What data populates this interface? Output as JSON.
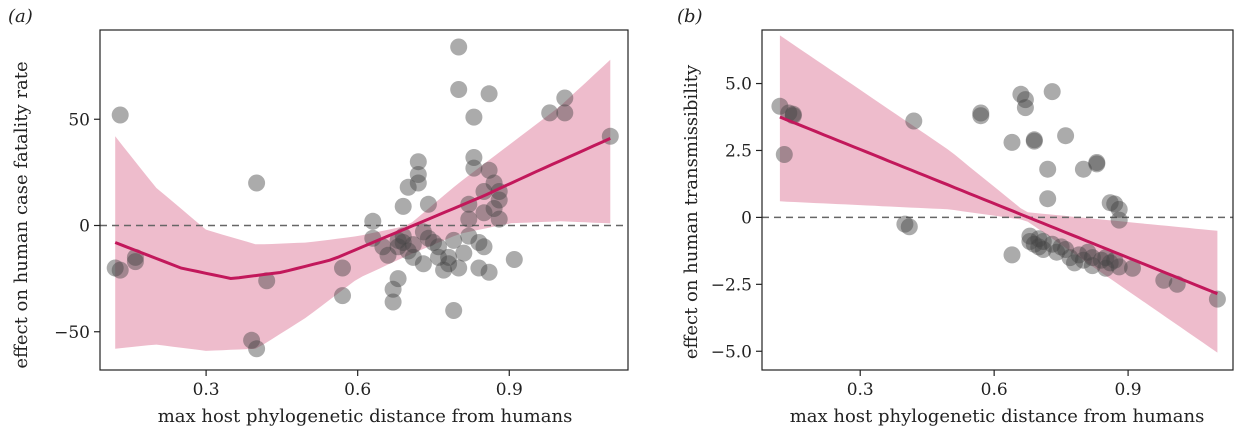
{
  "chart_data": [
    {
      "type": "scatter",
      "panel_label": "(a)",
      "xlabel": "max host phylogenetic distance from humans",
      "ylabel": "effect on human case fatality rate",
      "xlim": [
        0.09,
        1.135
      ],
      "ylim": [
        -68,
        92
      ],
      "xticks": [
        0.3,
        0.6,
        0.9
      ],
      "xtick_labels": [
        "0.3",
        "0.6",
        "0.9"
      ],
      "yticks": [
        50,
        0,
        -50
      ],
      "ytick_labels": [
        "50",
        "0",
        "−50"
      ],
      "reference_line_y": 0,
      "points": [
        [
          0.12,
          -20
        ],
        [
          0.13,
          -21
        ],
        [
          0.13,
          52
        ],
        [
          0.16,
          -15
        ],
        [
          0.16,
          -17
        ],
        [
          0.39,
          -54
        ],
        [
          0.4,
          -58
        ],
        [
          0.4,
          20
        ],
        [
          0.42,
          -26
        ],
        [
          0.57,
          -20
        ],
        [
          0.57,
          -33
        ],
        [
          0.63,
          2
        ],
        [
          0.63,
          -6
        ],
        [
          0.65,
          -10
        ],
        [
          0.66,
          -14
        ],
        [
          0.67,
          -30
        ],
        [
          0.67,
          -36
        ],
        [
          0.68,
          -25
        ],
        [
          0.68,
          -7
        ],
        [
          0.68,
          -10
        ],
        [
          0.69,
          9
        ],
        [
          0.69,
          -5
        ],
        [
          0.69,
          -8
        ],
        [
          0.7,
          18
        ],
        [
          0.7,
          -12
        ],
        [
          0.71,
          -9
        ],
        [
          0.71,
          -15
        ],
        [
          0.72,
          30
        ],
        [
          0.72,
          24
        ],
        [
          0.72,
          20
        ],
        [
          0.73,
          -3
        ],
        [
          0.73,
          -18
        ],
        [
          0.74,
          10
        ],
        [
          0.74,
          -6
        ],
        [
          0.75,
          -8
        ],
        [
          0.76,
          -10
        ],
        [
          0.76,
          -15
        ],
        [
          0.77,
          -21
        ],
        [
          0.78,
          -15
        ],
        [
          0.78,
          -18
        ],
        [
          0.79,
          -40
        ],
        [
          0.79,
          -7
        ],
        [
          0.8,
          84
        ],
        [
          0.8,
          64
        ],
        [
          0.8,
          -20
        ],
        [
          0.81,
          -13
        ],
        [
          0.82,
          -5
        ],
        [
          0.82,
          3
        ],
        [
          0.82,
          10
        ],
        [
          0.83,
          51
        ],
        [
          0.83,
          32
        ],
        [
          0.83,
          27
        ],
        [
          0.84,
          -8
        ],
        [
          0.84,
          -20
        ],
        [
          0.85,
          16
        ],
        [
          0.85,
          6
        ],
        [
          0.85,
          -10
        ],
        [
          0.86,
          62
        ],
        [
          0.86,
          26
        ],
        [
          0.86,
          -22
        ],
        [
          0.87,
          8
        ],
        [
          0.87,
          20
        ],
        [
          0.88,
          3
        ],
        [
          0.88,
          12
        ],
        [
          0.88,
          16
        ],
        [
          0.91,
          -16
        ],
        [
          0.98,
          53
        ],
        [
          1.01,
          53
        ],
        [
          1.01,
          60
        ],
        [
          1.1,
          42
        ]
      ],
      "fit_line": [
        [
          0.12,
          -8
        ],
        [
          0.25,
          -20
        ],
        [
          0.35,
          -25
        ],
        [
          0.45,
          -22
        ],
        [
          0.55,
          -16
        ],
        [
          0.65,
          -6
        ],
        [
          0.75,
          4
        ],
        [
          0.85,
          14
        ],
        [
          0.95,
          25
        ],
        [
          1.1,
          41
        ]
      ],
      "ci_upper": [
        [
          0.12,
          42
        ],
        [
          0.2,
          18
        ],
        [
          0.3,
          -2
        ],
        [
          0.4,
          -9
        ],
        [
          0.5,
          -8
        ],
        [
          0.6,
          -5
        ],
        [
          0.7,
          0
        ],
        [
          0.8,
          20
        ],
        [
          0.9,
          38
        ],
        [
          1.0,
          56
        ],
        [
          1.1,
          78
        ]
      ],
      "ci_lower": [
        [
          0.12,
          -58
        ],
        [
          0.2,
          -56
        ],
        [
          0.3,
          -59
        ],
        [
          0.4,
          -58
        ],
        [
          0.5,
          -43
        ],
        [
          0.6,
          -25
        ],
        [
          0.7,
          -14
        ],
        [
          0.8,
          -4
        ],
        [
          0.9,
          1
        ],
        [
          1.0,
          2
        ],
        [
          1.1,
          1
        ]
      ]
    },
    {
      "type": "scatter",
      "panel_label": "(b)",
      "xlabel": "max host phylogenetic distance from humans",
      "ylabel": "effect on human transmissibility",
      "xlim": [
        0.08,
        1.135
      ],
      "ylim": [
        -5.7,
        7.0
      ],
      "xticks": [
        0.3,
        0.6,
        0.9
      ],
      "xtick_labels": [
        "0.3",
        "0.6",
        "0.9"
      ],
      "yticks": [
        5,
        2.5,
        0,
        -2.5,
        -5
      ],
      "ytick_labels": [
        "5.0",
        "2.5",
        "0",
        "−2.5",
        "−5.0"
      ],
      "reference_line_y": 0,
      "points": [
        [
          0.12,
          4.15
        ],
        [
          0.13,
          2.35
        ],
        [
          0.14,
          3.9
        ],
        [
          0.15,
          3.8
        ],
        [
          0.15,
          3.85
        ],
        [
          0.4,
          -0.25
        ],
        [
          0.41,
          -0.35
        ],
        [
          0.42,
          3.6
        ],
        [
          0.57,
          3.8
        ],
        [
          0.57,
          3.9
        ],
        [
          0.64,
          2.8
        ],
        [
          0.64,
          -1.4
        ],
        [
          0.66,
          4.6
        ],
        [
          0.67,
          4.1
        ],
        [
          0.67,
          4.4
        ],
        [
          0.68,
          -0.7
        ],
        [
          0.68,
          -0.9
        ],
        [
          0.69,
          -1.0
        ],
        [
          0.69,
          2.85
        ],
        [
          0.69,
          2.9
        ],
        [
          0.7,
          -0.8
        ],
        [
          0.7,
          -1.1
        ],
        [
          0.71,
          -0.9
        ],
        [
          0.71,
          -1.2
        ],
        [
          0.72,
          1.8
        ],
        [
          0.72,
          0.7
        ],
        [
          0.73,
          4.7
        ],
        [
          0.73,
          -1.0
        ],
        [
          0.74,
          -1.3
        ],
        [
          0.75,
          -1.1
        ],
        [
          0.76,
          3.05
        ],
        [
          0.76,
          -1.2
        ],
        [
          0.77,
          -1.5
        ],
        [
          0.78,
          -1.7
        ],
        [
          0.79,
          -1.4
        ],
        [
          0.8,
          1.8
        ],
        [
          0.8,
          -1.6
        ],
        [
          0.81,
          -1.3
        ],
        [
          0.82,
          -1.5
        ],
        [
          0.82,
          -1.8
        ],
        [
          0.83,
          2.0
        ],
        [
          0.83,
          2.05
        ],
        [
          0.84,
          -1.6
        ],
        [
          0.85,
          -1.5
        ],
        [
          0.85,
          -1.9
        ],
        [
          0.86,
          0.55
        ],
        [
          0.86,
          -1.7
        ],
        [
          0.87,
          -1.6
        ],
        [
          0.87,
          0.5
        ],
        [
          0.88,
          0.3
        ],
        [
          0.88,
          -0.1
        ],
        [
          0.88,
          -1.85
        ],
        [
          0.91,
          -1.9
        ],
        [
          0.98,
          -2.35
        ],
        [
          1.01,
          -2.5
        ],
        [
          1.1,
          -3.05
        ]
      ],
      "fit_line": [
        [
          0.12,
          3.75
        ],
        [
          1.1,
          -2.85
        ]
      ],
      "ci_upper": [
        [
          0.12,
          6.8
        ],
        [
          0.5,
          2.5
        ],
        [
          0.67,
          0.2
        ],
        [
          1.1,
          -0.5
        ]
      ],
      "ci_lower": [
        [
          0.12,
          0.6
        ],
        [
          0.5,
          0.3
        ],
        [
          0.67,
          -0.1
        ],
        [
          1.1,
          -5.05
        ]
      ]
    }
  ]
}
